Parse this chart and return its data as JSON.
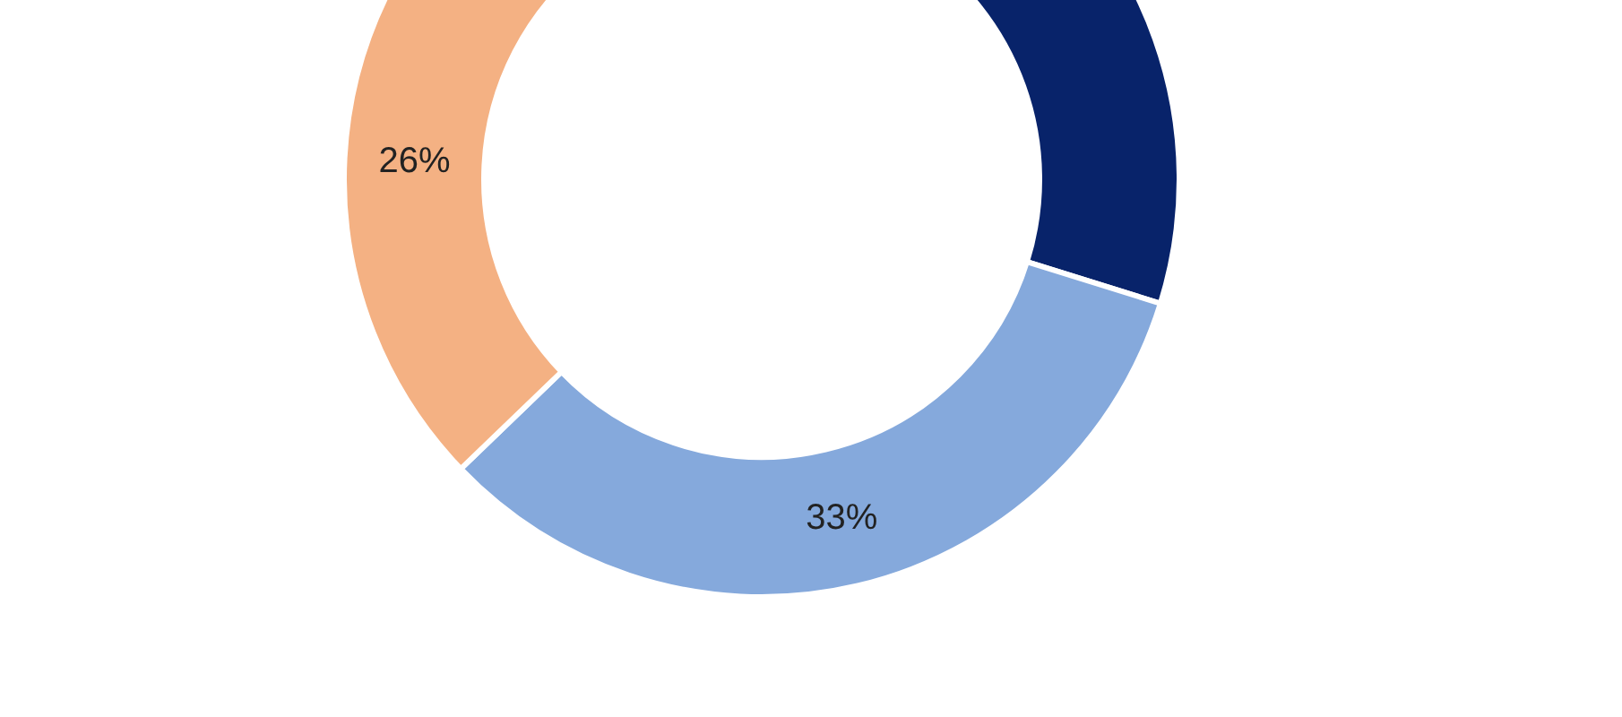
{
  "chart_data": {
    "type": "donut",
    "categories": [
      null,
      null,
      null
    ],
    "values": [
      41,
      33,
      26
    ],
    "colors": [
      "#08236a",
      "#85a9dc",
      "#f4b183"
    ],
    "value_labels": [
      null,
      "33%",
      "26%"
    ]
  }
}
